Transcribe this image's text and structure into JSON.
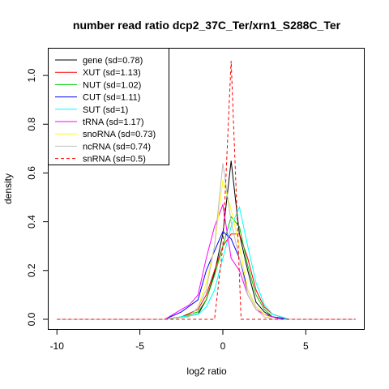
{
  "chart_data": {
    "type": "line",
    "title": "number read ratio dcp2_37C_Ter/xrn1_S288C_Ter",
    "xlabel": "log2 ratio",
    "ylabel": "density",
    "xlim": [
      -10.5,
      8.5
    ],
    "ylim": [
      -0.04,
      1.11
    ],
    "x_ticks": [
      -10,
      -5,
      0,
      5
    ],
    "x_tick_labels": [
      "-10",
      "-5",
      "0",
      "5"
    ],
    "y_ticks": [
      0.0,
      0.2,
      0.4,
      0.6,
      0.8,
      1.0
    ],
    "y_tick_labels": [
      "0.0",
      "0.2",
      "0.4",
      "0.6",
      "0.8",
      "1.0"
    ],
    "legend_position": "top-left",
    "series": [
      {
        "name": "gene (sd=0.78)",
        "color": "#000000",
        "dash": false,
        "x": [
          -10,
          -3.5,
          -2.5,
          -1.5,
          -1.0,
          -0.5,
          0.0,
          0.5,
          1.0,
          1.5,
          2.0,
          2.5,
          3.0,
          4.0,
          8
        ],
        "y": [
          0,
          0,
          0.01,
          0.02,
          0.08,
          0.19,
          0.35,
          0.65,
          0.35,
          0.2,
          0.07,
          0.03,
          0.01,
          0,
          0
        ]
      },
      {
        "name": "XUT (sd=1.13)",
        "color": "#ff0000",
        "dash": false,
        "x": [
          -10,
          -3.5,
          -2.5,
          -1.5,
          -1.0,
          -0.5,
          0.0,
          0.5,
          1.0,
          1.5,
          2.0,
          2.5,
          3.0,
          4.0,
          8
        ],
        "y": [
          0,
          0,
          0.01,
          0.04,
          0.1,
          0.2,
          0.3,
          0.35,
          0.35,
          0.25,
          0.12,
          0.05,
          0.02,
          0,
          0
        ]
      },
      {
        "name": "NUT (sd=1.02)",
        "color": "#00cc00",
        "dash": false,
        "x": [
          -10,
          -3.5,
          -2.5,
          -1.5,
          -1.0,
          -0.5,
          0.0,
          0.5,
          1.0,
          1.5,
          2.0,
          2.5,
          3.0,
          4.0,
          8
        ],
        "y": [
          0,
          0,
          0.01,
          0.03,
          0.08,
          0.18,
          0.3,
          0.42,
          0.38,
          0.22,
          0.1,
          0.04,
          0.01,
          0,
          0
        ]
      },
      {
        "name": "CUT (sd=1.11)",
        "color": "#0000ff",
        "dash": false,
        "x": [
          -10,
          -3.5,
          -2.5,
          -1.5,
          -1.0,
          -0.5,
          0.0,
          0.5,
          1.0,
          1.5,
          2.0,
          2.5,
          3.0,
          4.0,
          8
        ],
        "y": [
          0,
          0,
          0.03,
          0.08,
          0.2,
          0.28,
          0.36,
          0.33,
          0.25,
          0.12,
          0.05,
          0.02,
          0.01,
          0,
          0
        ]
      },
      {
        "name": "SUT (sd=1)",
        "color": "#00ffff",
        "dash": false,
        "x": [
          -10,
          -3.5,
          -2.5,
          -1.5,
          -1.0,
          -0.5,
          0.0,
          0.5,
          1.0,
          1.5,
          2.0,
          2.5,
          3.0,
          4.0,
          8
        ],
        "y": [
          0,
          0,
          0.01,
          0.02,
          0.05,
          0.12,
          0.25,
          0.38,
          0.46,
          0.3,
          0.15,
          0.06,
          0.02,
          0,
          0
        ]
      },
      {
        "name": "tRNA (sd=1.17)",
        "color": "#ff00ff",
        "dash": false,
        "x": [
          -10,
          -3.5,
          -3.0,
          -2.0,
          -1.5,
          -1.0,
          -0.5,
          0.0,
          0.5,
          1.0,
          1.5,
          2.0,
          2.5,
          3.5,
          8
        ],
        "y": [
          0,
          0,
          0.02,
          0.06,
          0.1,
          0.25,
          0.38,
          0.47,
          0.25,
          0.2,
          0.1,
          0.04,
          0.02,
          0,
          0
        ]
      },
      {
        "name": "snoRNA (sd=0.73)",
        "color": "#ffff00",
        "dash": false,
        "x": [
          -10,
          -3.5,
          -2.0,
          -1.5,
          -1.0,
          -0.5,
          0.0,
          0.5,
          1.0,
          1.5,
          2.0,
          2.5,
          3.0,
          8
        ],
        "y": [
          0,
          0,
          0.01,
          0.05,
          0.15,
          0.3,
          0.57,
          0.45,
          0.3,
          0.12,
          0.05,
          0.02,
          0,
          0
        ]
      },
      {
        "name": "ncRNA (sd=0.74)",
        "color": "#bebebe",
        "dash": false,
        "x": [
          -10,
          -3.5,
          -2.0,
          -1.5,
          -1.0,
          -0.5,
          0.0,
          0.5,
          1.0,
          1.5,
          2.0,
          2.5,
          3.0,
          8
        ],
        "y": [
          0,
          0,
          0.01,
          0.05,
          0.12,
          0.3,
          0.64,
          0.4,
          0.25,
          0.1,
          0.04,
          0.01,
          0,
          0
        ]
      },
      {
        "name": "snRNA (sd=0.5)",
        "color": "#ff0000",
        "dash": true,
        "x": [
          -10,
          -0.5,
          0.0,
          0.5,
          1.1,
          8
        ],
        "y": [
          0,
          0,
          0.3,
          1.06,
          0,
          0
        ]
      }
    ]
  }
}
